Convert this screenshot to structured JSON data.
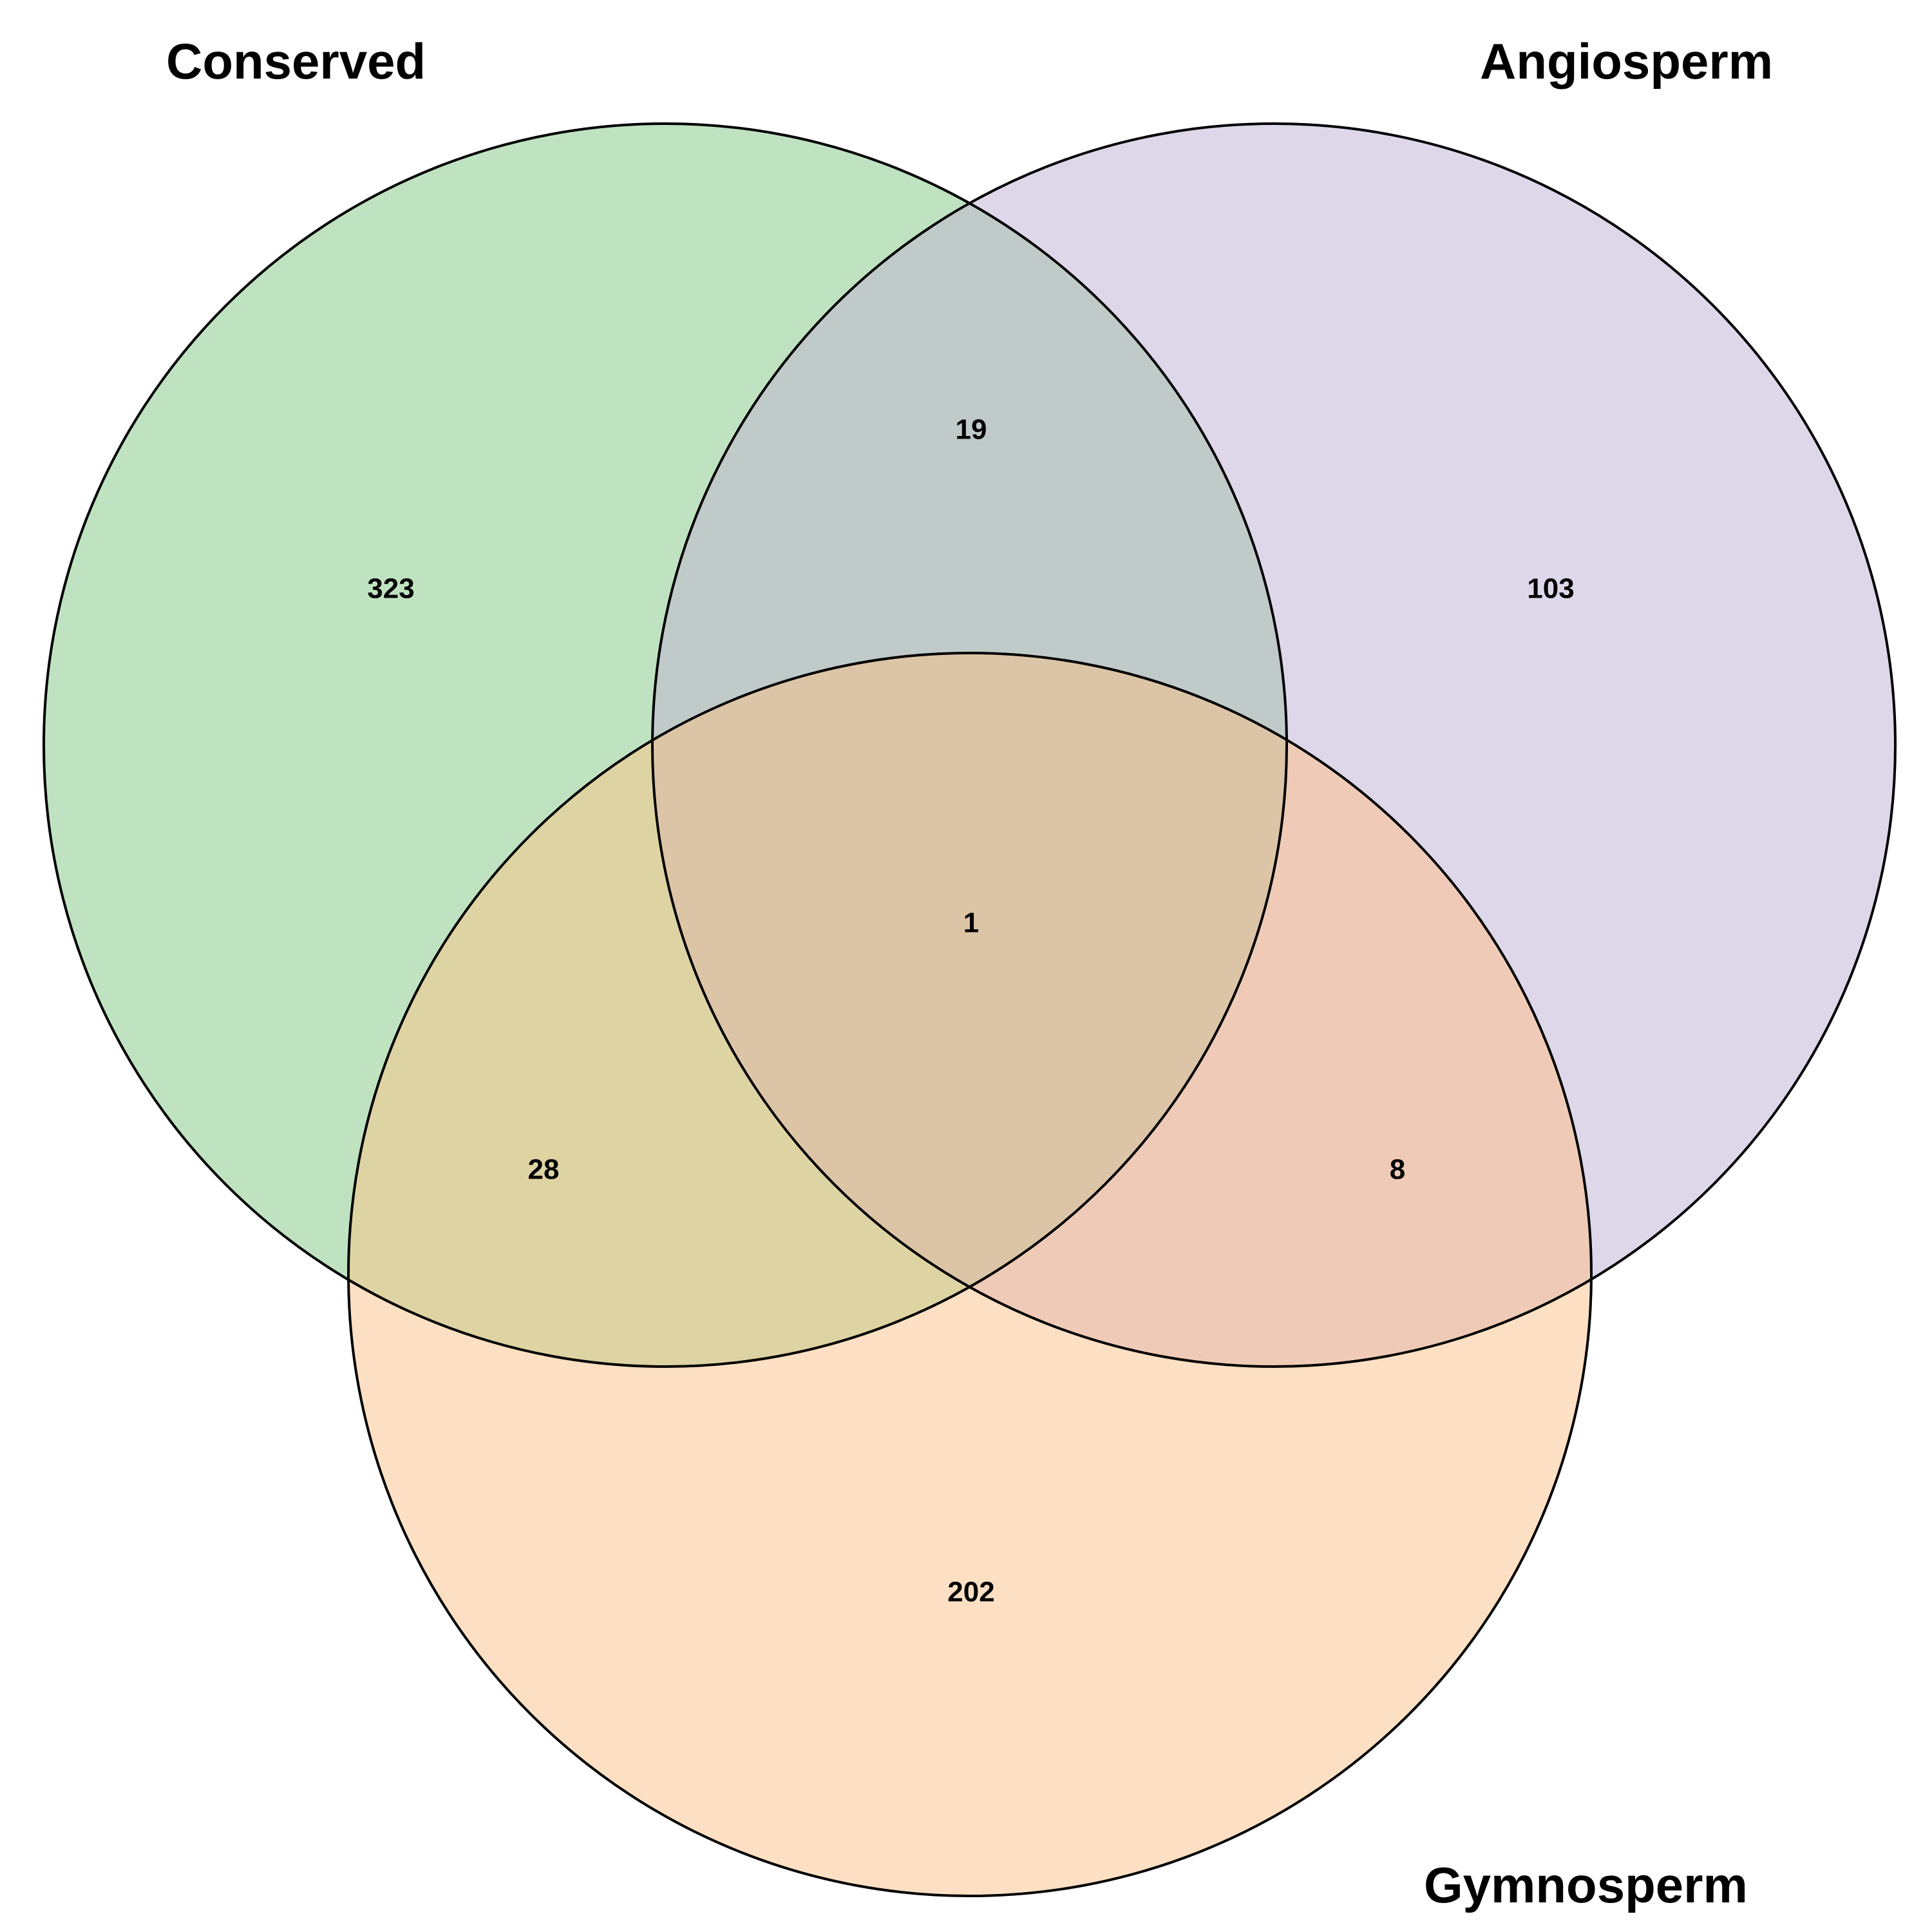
{
  "sets": {
    "conserved": {
      "label": "Conserved",
      "color": "#bfe3c1"
    },
    "angiosperm": {
      "label": "Angiosperm",
      "color": "#ded7ea"
    },
    "gymnosperm": {
      "label": "Gymnosperm",
      "color": "#fde0c3"
    }
  },
  "regions": {
    "conserved_only": "323",
    "angiosperm_only": "103",
    "gymnosperm_only": "202",
    "conserved_angiosperm": "19",
    "conserved_gymnosperm": "28",
    "angiosperm_gymnosperm": "8",
    "all_three": "1"
  },
  "colors": {
    "conserved_angiosperm": "#c0cbc9",
    "conserved_gymnosperm": "#ded3a2",
    "angiosperm_gymnosperm": "#efcbb7",
    "all_three": "#dcc4a6",
    "outline": "#000000"
  }
}
